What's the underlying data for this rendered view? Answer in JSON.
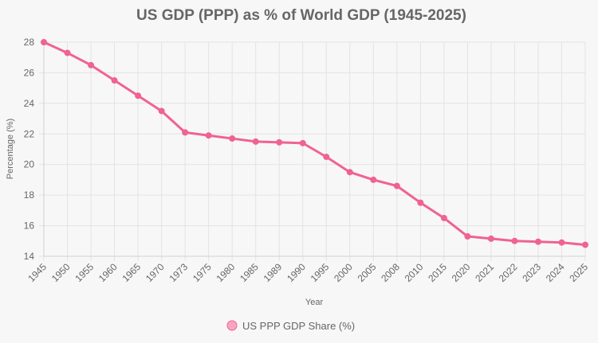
{
  "chart_data": {
    "type": "line",
    "title": "US GDP (PPP) as % of World GDP (1945-2025)",
    "xlabel": "Year",
    "ylabel": "Percentage (%)",
    "ylim": [
      14,
      28
    ],
    "yticks": [
      14,
      16,
      18,
      20,
      22,
      24,
      26,
      28
    ],
    "grid": true,
    "legend_position": "bottom",
    "categories": [
      "1945",
      "1950",
      "1955",
      "1960",
      "1965",
      "1970",
      "1973",
      "1975",
      "1980",
      "1985",
      "1989",
      "1990",
      "1995",
      "2000",
      "2005",
      "2008",
      "2010",
      "2015",
      "2020",
      "2021",
      "2022",
      "2023",
      "2024",
      "2025"
    ],
    "series": [
      {
        "name": "US PPP GDP Share (%)",
        "color": "#f06292",
        "values": [
          28.0,
          27.3,
          26.5,
          25.5,
          24.5,
          23.5,
          22.1,
          21.9,
          21.7,
          21.5,
          21.45,
          21.4,
          20.5,
          19.5,
          19.0,
          18.6,
          17.5,
          16.5,
          15.3,
          15.15,
          15.0,
          14.95,
          14.9,
          14.75
        ]
      }
    ]
  }
}
